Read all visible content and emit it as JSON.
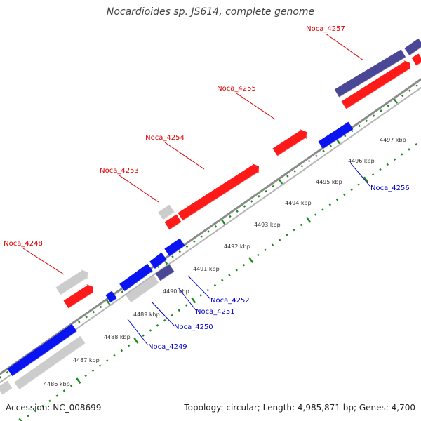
{
  "title": "Nocardioides sp. JS614, complete genome",
  "accession_text": "Accession: NC_008699",
  "stats_text": "Topology: circular; Length: 4,985,871 bp; Genes: 4,700",
  "colors": {
    "forward": "#ff1a1a",
    "reverse": "#0a14f0",
    "forward_label": "#dd0000",
    "reverse_label": "#0000cc",
    "other": "#cccccc",
    "highlight": "#4b4797",
    "backbone": "#8a8a8a",
    "ticks": "#1a8c1a",
    "tick_labels": "#333333"
  },
  "axis_labels": [
    "4486 kbp",
    "4487 kbp",
    "4488 kbp",
    "4489 kbp",
    "4490 kbp",
    "4491 kbp",
    "4492 kbp",
    "4493 kbp",
    "4494 kbp",
    "4495 kbp",
    "4496 kbp",
    "4497 kbp"
  ],
  "genes": {
    "forward_named": [
      "Noca_4248",
      "Noca_4253",
      "Noca_4254",
      "Noca_4255",
      "Noca_4257"
    ],
    "reverse_named": [
      "Noca_4249",
      "Noca_4250",
      "Noca_4251",
      "Noca_4252",
      "Noca_4256"
    ]
  }
}
